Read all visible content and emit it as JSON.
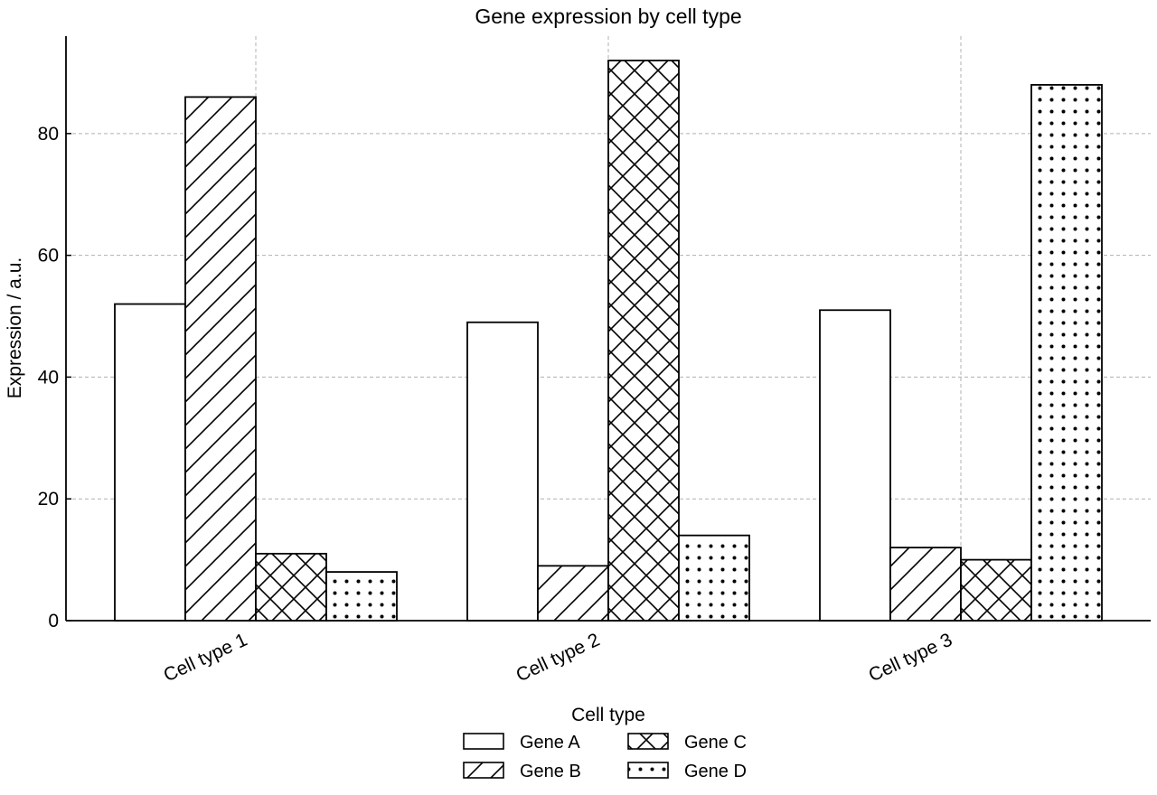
{
  "chart_data": {
    "type": "bar",
    "title": "Gene expression by cell type",
    "xlabel": "Cell type",
    "ylabel": "Expression / a.u.",
    "categories": [
      "Cell type 1",
      "Cell type 2",
      "Cell type 3"
    ],
    "series": [
      {
        "name": "Gene A",
        "values": [
          52,
          49,
          51
        ],
        "pattern": "none"
      },
      {
        "name": "Gene B",
        "values": [
          86,
          9,
          12
        ],
        "pattern": "diagonal"
      },
      {
        "name": "Gene C",
        "values": [
          11,
          92,
          10
        ],
        "pattern": "crosshatch"
      },
      {
        "name": "Gene D",
        "values": [
          8,
          14,
          88
        ],
        "pattern": "dots"
      }
    ],
    "ylim": [
      0,
      96
    ],
    "yticks": [
      0,
      20,
      40,
      60,
      80
    ],
    "grid": true,
    "legend": {
      "title": "Cell type",
      "placement": "bottom-center",
      "columns": 2
    },
    "colors": {
      "bar_fill": "#ffffff",
      "bar_stroke": "#000000",
      "grid": "#b0b0b0"
    }
  }
}
